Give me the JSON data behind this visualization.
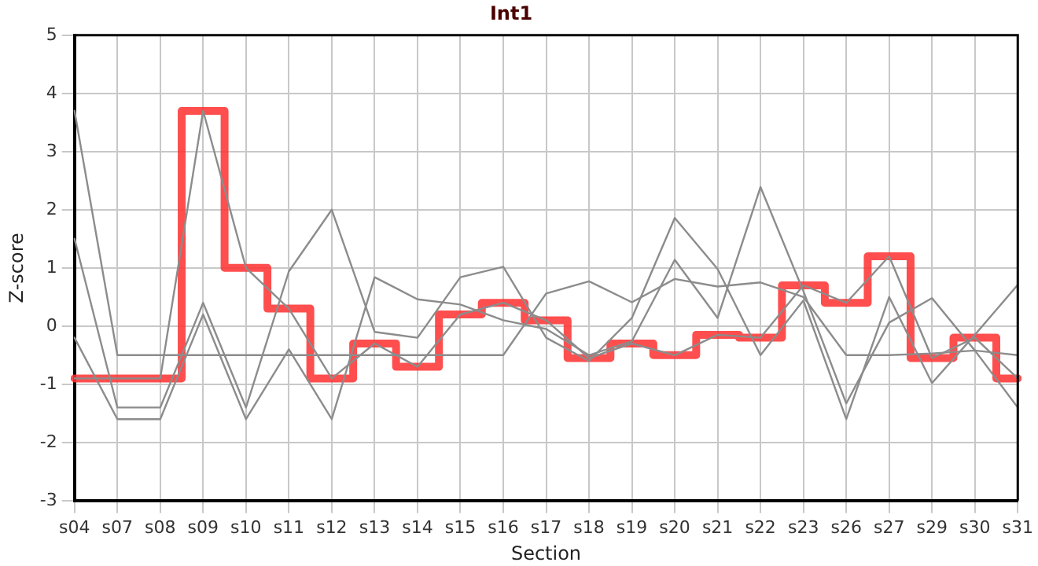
{
  "chart_data": {
    "type": "line",
    "title": "Int1",
    "xlabel": "Section",
    "ylabel": "Z-score",
    "categories": [
      "s04",
      "s07",
      "s08",
      "s09",
      "s10",
      "s11",
      "s12",
      "s13",
      "s14",
      "s15",
      "s16",
      "s17",
      "s18",
      "s19",
      "s20",
      "s21",
      "s22",
      "s23",
      "s26",
      "s27",
      "s29",
      "s30",
      "s31"
    ],
    "series": [
      {
        "color": "#8c8c8c",
        "values": [
          3.7,
          -0.5,
          -0.5,
          -0.5,
          -0.5,
          -0.5,
          -0.5,
          -0.5,
          -0.5,
          -0.5,
          -0.5,
          0.56,
          0.77,
          0.41,
          0.81,
          0.68,
          0.75,
          0.5,
          -0.5,
          -0.5,
          -0.47,
          -0.42,
          -0.5
        ]
      },
      {
        "color": "#8c8c8c",
        "values": [
          1.5,
          -1.4,
          -1.4,
          0.4,
          -1.4,
          0.94,
          2.0,
          -0.1,
          -0.2,
          0.84,
          1.02,
          -0.2,
          -0.6,
          0.14,
          1.86,
          0.98,
          -0.5,
          0.44,
          -1.6,
          0.5,
          -0.98,
          -0.15,
          0.71
        ]
      },
      {
        "color": "#8c8c8c",
        "values": [
          -0.2,
          -1.6,
          -1.6,
          0.2,
          -1.6,
          -0.4,
          -1.6,
          0.84,
          0.46,
          0.37,
          0.1,
          -0.05,
          -0.5,
          -0.26,
          1.14,
          0.14,
          2.39,
          0.6,
          -1.33,
          0.06,
          0.48,
          -0.42,
          -1.4
        ]
      },
      {
        "color": "#8c8c8c",
        "values": [
          -0.9,
          -0.9,
          -0.9,
          3.7,
          1.0,
          0.3,
          -0.9,
          -0.3,
          -0.7,
          0.2,
          0.4,
          0.1,
          -0.55,
          -0.3,
          -0.5,
          -0.15,
          -0.2,
          0.7,
          0.4,
          1.2,
          -0.55,
          -0.2,
          -0.9
        ]
      },
      {
        "type": "step",
        "color": "#ff3333",
        "values": [
          -0.9,
          -0.9,
          -0.9,
          3.7,
          1.0,
          0.3,
          -0.9,
          -0.3,
          -0.7,
          0.2,
          0.4,
          0.1,
          -0.55,
          -0.3,
          -0.5,
          -0.15,
          -0.2,
          0.7,
          0.4,
          1.2,
          -0.55,
          -0.2,
          -0.9
        ]
      }
    ],
    "ylim": [
      -3,
      5
    ],
    "yticks": [
      -3,
      -2,
      -1,
      0,
      1,
      2,
      3,
      4,
      5
    ],
    "grid": true,
    "legend": false,
    "marker": "none"
  }
}
